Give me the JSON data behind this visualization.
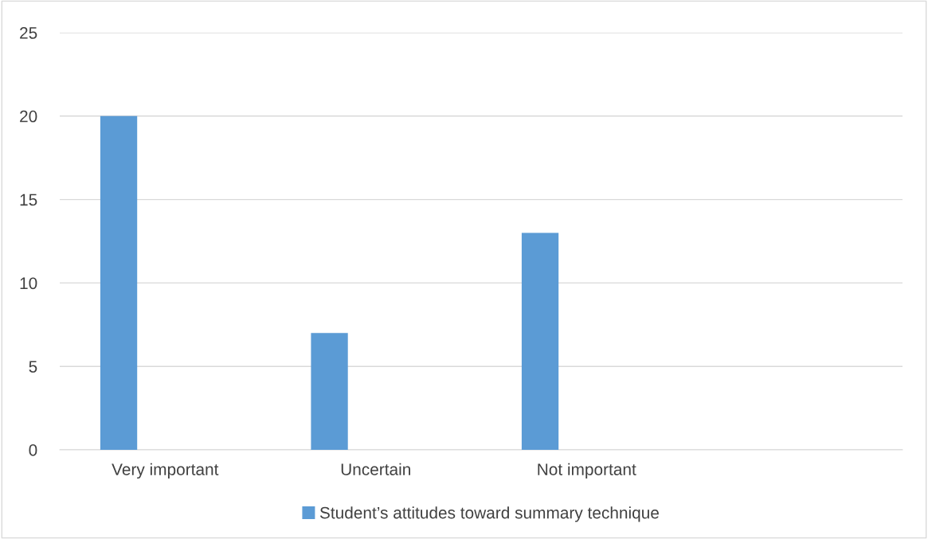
{
  "chart_data": {
    "type": "bar",
    "categories": [
      "Very important",
      "Uncertain",
      "Not important",
      null
    ],
    "series": [
      {
        "name": "Student’s attitudes toward summary technique",
        "color": "#5b9bd5",
        "values": [
          20,
          7,
          13,
          null
        ]
      }
    ],
    "ylim": [
      0,
      25
    ],
    "yticks": [
      0,
      5,
      10,
      15,
      20,
      25
    ],
    "grid": "y",
    "legend": "bottom"
  }
}
